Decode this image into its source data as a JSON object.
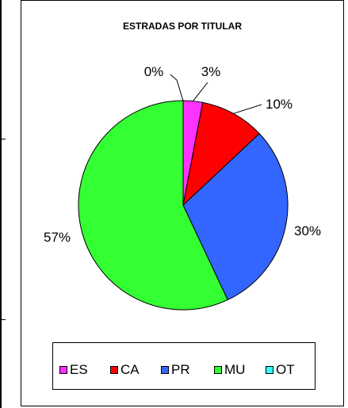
{
  "chart_data": {
    "type": "pie",
    "title": "ESTRADAS POR TITULAR",
    "categories": [
      "ES",
      "CA",
      "PR",
      "MU",
      "OT"
    ],
    "values": [
      3,
      10,
      30,
      57,
      0
    ],
    "labels": [
      "3%",
      "10%",
      "30%",
      "57%",
      "0%"
    ],
    "colors": [
      "#ff33ff",
      "#ff0000",
      "#3366ff",
      "#33ff33",
      "#33ffff"
    ],
    "legend": "bottom"
  }
}
